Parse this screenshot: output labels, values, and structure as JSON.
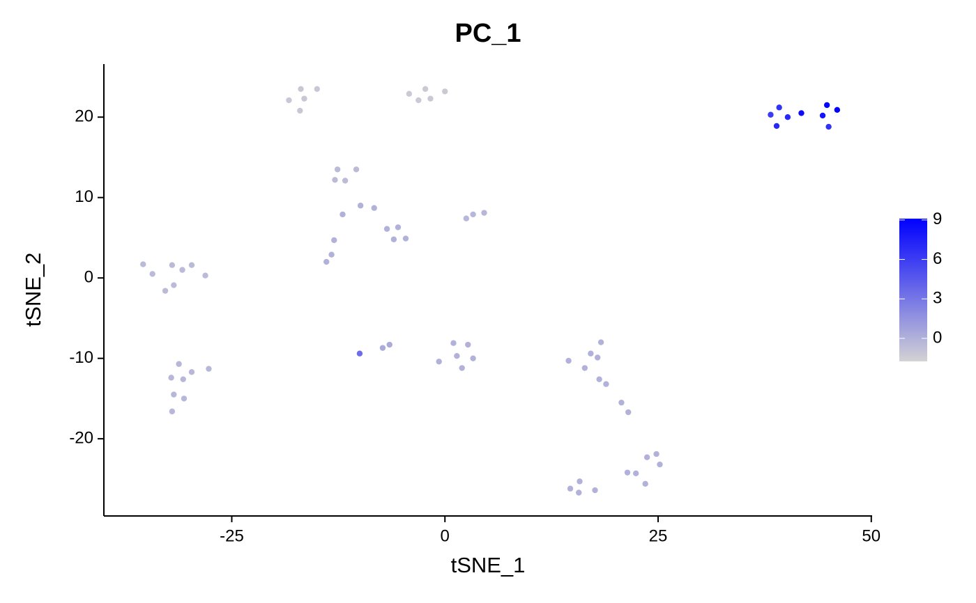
{
  "chart_data": {
    "type": "scatter",
    "title": "PC_1",
    "x_label": "tSNE_1",
    "y_label": "tSNE_2",
    "x": [
      -18.3,
      -16.9,
      -16.5,
      -15.0,
      -17.0,
      -4.2,
      -2.3,
      -3.1,
      -1.7,
      0.0,
      38.2,
      39.2,
      38.9,
      40.2,
      41.8,
      44.3,
      44.8,
      46.0,
      45.0,
      -12.6,
      -10.4,
      -12.9,
      -11.7,
      -9.9,
      -8.3,
      -12.0,
      -6.8,
      -5.5,
      -6.0,
      -4.6,
      -13.0,
      -13.3,
      -13.9,
      2.5,
      3.3,
      4.6,
      -35.4,
      -34.3,
      -32.0,
      -30.8,
      -29.7,
      -28.1,
      -32.8,
      -31.8,
      -31.2,
      -27.7,
      -32.1,
      -29.7,
      -30.7,
      -31.8,
      -30.6,
      -32.0,
      -10.0,
      -7.3,
      -6.5,
      1.0,
      2.7,
      1.4,
      3.3,
      -0.7,
      2.0,
      14.5,
      17.1,
      18.3,
      17.9,
      16.4,
      18.1,
      18.9,
      20.7,
      21.5,
      21.4,
      22.4,
      23.7,
      24.8,
      25.2,
      23.5,
      14.7,
      15.8,
      15.7,
      17.6
    ],
    "y": [
      22.1,
      23.5,
      22.3,
      23.5,
      20.8,
      22.9,
      23.5,
      22.1,
      22.3,
      23.2,
      20.3,
      21.2,
      18.9,
      20.0,
      20.5,
      20.2,
      21.5,
      20.9,
      18.8,
      13.5,
      13.5,
      12.2,
      12.1,
      9.0,
      8.7,
      7.9,
      6.1,
      6.3,
      4.8,
      4.9,
      4.7,
      2.9,
      2.0,
      7.4,
      7.9,
      8.1,
      1.7,
      0.5,
      1.6,
      1.0,
      1.6,
      0.3,
      -1.6,
      -0.9,
      -10.7,
      -11.3,
      -12.4,
      -11.7,
      -12.6,
      -14.5,
      -15.0,
      -16.6,
      -9.4,
      -8.7,
      -8.3,
      -8.1,
      -8.3,
      -9.7,
      -10.0,
      -10.4,
      -11.2,
      -10.3,
      -9.4,
      -8.0,
      -9.9,
      -11.2,
      -12.6,
      -13.2,
      -15.5,
      -16.7,
      -24.2,
      -24.3,
      -22.3,
      -21.9,
      -23.2,
      -25.6,
      -26.2,
      -25.3,
      -26.7,
      -26.4
    ],
    "values": [
      -1.2,
      -1.2,
      -1.2,
      -1.2,
      -1.2,
      -1.3,
      -1.3,
      -1.3,
      -1.3,
      -1.3,
      6,
      6.5,
      7,
      7,
      8.5,
      8,
      9,
      9,
      6.5,
      -0.5,
      -0.5,
      -0.5,
      -0.5,
      0,
      0,
      0,
      0,
      0,
      0,
      0,
      0,
      0,
      0,
      -0.3,
      -0.3,
      -0.3,
      -0.5,
      -0.5,
      -0.5,
      -0.5,
      -0.5,
      -0.5,
      -0.5,
      -0.5,
      -0.3,
      -0.3,
      -0.3,
      -0.3,
      -0.3,
      -0.3,
      -0.3,
      -0.3,
      3.5,
      0.3,
      0.3,
      0,
      0,
      0,
      0,
      0,
      0,
      0,
      0,
      0,
      0,
      0,
      0,
      0,
      0,
      0,
      0,
      0,
      0,
      0,
      0,
      0,
      0,
      0,
      0,
      0
    ],
    "xlim": [
      -40,
      50.1
    ],
    "xticks": [
      -25,
      0,
      25,
      50
    ],
    "ylim": [
      -29.6,
      26.6
    ],
    "yticks": [
      -20,
      -10,
      0,
      10,
      20
    ],
    "color_scale": {
      "lim": [
        -1.75,
        9.1
      ],
      "ticks": [
        0,
        3,
        6,
        9
      ],
      "low": "#d3d3d3",
      "high": "#0000ff"
    }
  }
}
